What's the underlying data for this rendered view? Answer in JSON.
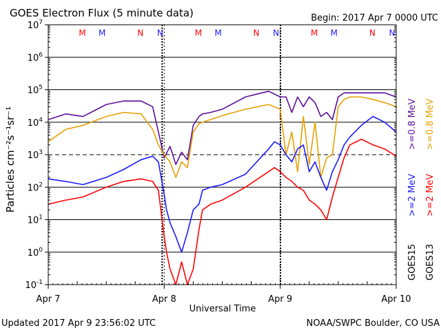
{
  "colors": {
    "goes15_high": "#5b0f9a",
    "goes13_high": "#e6a000",
    "goes15_low": "#1a1aff",
    "goes13_low": "#ff0000",
    "grid": "#000000"
  },
  "header": {
    "title": "GOES Electron Flux (5 minute data)",
    "begin": "Begin: 2017 Apr 7 0000 UTC"
  },
  "footer": {
    "updated": "Updated 2017 Apr  9 23:56:02 UTC",
    "credit": "NOAA/SWPC Boulder, CO USA"
  },
  "chart_data": {
    "type": "line",
    "ylabel": "Particles cm⁻²s⁻¹sr⁻¹",
    "xlabel": "Universal Time",
    "yscale": "log",
    "ylim": [
      0.1,
      10000000
    ],
    "xlim_days": [
      0,
      3
    ],
    "x_ticks": [
      "Apr 7",
      "Apr 8",
      "Apr 9",
      "Apr 10"
    ],
    "y_tick_exponents": [
      -1,
      0,
      1,
      2,
      3,
      4,
      5,
      6,
      7
    ],
    "threshold_line": 1000,
    "markers": [
      {
        "x": 0.33,
        "label": "M",
        "sat": "GOES13"
      },
      {
        "x": 0.5,
        "label": "M",
        "sat": "GOES15"
      },
      {
        "x": 0.83,
        "label": "N",
        "sat": "GOES13"
      },
      {
        "x": 1.0,
        "label": "N",
        "sat": "GOES15"
      },
      {
        "x": 1.33,
        "label": "M",
        "sat": "GOES13"
      },
      {
        "x": 1.5,
        "label": "M",
        "sat": "GOES15"
      },
      {
        "x": 1.83,
        "label": "N",
        "sat": "GOES13"
      },
      {
        "x": 2.0,
        "label": "N",
        "sat": "GOES15"
      },
      {
        "x": 2.33,
        "label": "M",
        "sat": "GOES13"
      },
      {
        "x": 2.5,
        "label": "M",
        "sat": "GOES15"
      },
      {
        "x": 2.83,
        "label": "N",
        "sat": "GOES13"
      },
      {
        "x": 3.0,
        "label": "N",
        "sat": "GOES15"
      }
    ],
    "eclipse_x": [
      1.0,
      2.02
    ],
    "legend": {
      "goes15": "GOES15",
      "goes13": "GOES13",
      "goes15_high": ">=0.8 MeV",
      "goes13_high": ">=0.8 MeV",
      "goes15_low": ">=2 MeV",
      "goes13_low": ">=2 MeV"
    },
    "series": [
      {
        "id": "goes15_high",
        "x": [
          0,
          0.15,
          0.3,
          0.5,
          0.65,
          0.8,
          0.9,
          0.95,
          1.0,
          1.05,
          1.1,
          1.15,
          1.2,
          1.25,
          1.3,
          1.33,
          1.4,
          1.5,
          1.7,
          1.9,
          2.0,
          2.05,
          2.1,
          2.15,
          2.2,
          2.25,
          2.3,
          2.35,
          2.4,
          2.45,
          2.5,
          2.55,
          2.6,
          2.7,
          2.8,
          2.9,
          3.0
        ],
        "y": [
          12000,
          18000,
          15000,
          35000,
          45000,
          45000,
          30000,
          5000,
          800,
          1800,
          500,
          1200,
          700,
          8000,
          15000,
          18000,
          20000,
          25000,
          60000,
          90000,
          60000,
          60000,
          20000,
          60000,
          30000,
          60000,
          40000,
          15000,
          20000,
          12000,
          60000,
          80000,
          80000,
          80000,
          80000,
          80000,
          60000
        ]
      },
      {
        "id": "goes13_high",
        "x": [
          0,
          0.15,
          0.3,
          0.5,
          0.65,
          0.8,
          0.9,
          0.95,
          1.0,
          1.05,
          1.1,
          1.15,
          1.2,
          1.25,
          1.3,
          1.33,
          1.4,
          1.5,
          1.7,
          1.9,
          2.0,
          2.05,
          2.1,
          2.15,
          2.2,
          2.25,
          2.3,
          2.35,
          2.4,
          2.45,
          2.5,
          2.55,
          2.6,
          2.7,
          2.8,
          2.9,
          3.0
        ],
        "y": [
          2500,
          6000,
          8000,
          15000,
          20000,
          18000,
          6000,
          2000,
          1000,
          600,
          200,
          600,
          400,
          5000,
          9000,
          10000,
          12000,
          16000,
          25000,
          35000,
          25000,
          1000,
          5000,
          300,
          15000,
          500,
          10000,
          200,
          800,
          1000,
          30000,
          50000,
          60000,
          60000,
          50000,
          40000,
          30000
        ]
      },
      {
        "id": "goes15_low",
        "x": [
          0,
          0.15,
          0.3,
          0.5,
          0.65,
          0.8,
          0.9,
          0.95,
          1.0,
          1.02,
          1.05,
          1.1,
          1.15,
          1.2,
          1.25,
          1.3,
          1.33,
          1.4,
          1.5,
          1.7,
          1.9,
          1.95,
          2.0,
          2.05,
          2.1,
          2.15,
          2.2,
          2.25,
          2.3,
          2.35,
          2.4,
          2.45,
          2.5,
          2.55,
          2.6,
          2.7,
          2.8,
          2.9,
          3.0
        ],
        "y": [
          180,
          150,
          120,
          200,
          350,
          700,
          900,
          600,
          60,
          20,
          8,
          3,
          1,
          4,
          20,
          30,
          80,
          100,
          120,
          250,
          1500,
          2500,
          2000,
          1000,
          600,
          1500,
          2000,
          300,
          600,
          200,
          80,
          300,
          700,
          2000,
          3500,
          8000,
          15000,
          10000,
          5000
        ]
      },
      {
        "id": "goes13_low",
        "x": [
          0,
          0.15,
          0.3,
          0.5,
          0.65,
          0.8,
          0.9,
          0.95,
          1.0,
          1.02,
          1.05,
          1.1,
          1.15,
          1.2,
          1.25,
          1.3,
          1.33,
          1.4,
          1.5,
          1.7,
          1.9,
          1.95,
          2.0,
          2.05,
          2.1,
          2.15,
          2.2,
          2.25,
          2.3,
          2.35,
          2.4,
          2.45,
          2.5,
          2.55,
          2.6,
          2.7,
          2.8,
          2.9,
          3.0
        ],
        "y": [
          30,
          40,
          50,
          100,
          150,
          180,
          150,
          80,
          3,
          1,
          0.3,
          0.1,
          0.5,
          0.1,
          0.3,
          5,
          20,
          30,
          40,
          100,
          300,
          400,
          300,
          200,
          150,
          100,
          80,
          40,
          30,
          20,
          10,
          50,
          200,
          800,
          2000,
          3000,
          2000,
          1500,
          900
        ]
      }
    ]
  }
}
